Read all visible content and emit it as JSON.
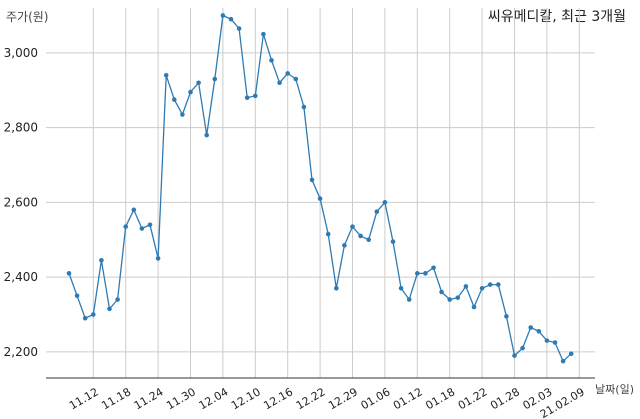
{
  "chart_data": {
    "type": "line",
    "title": "씨유메디칼, 최근 3개월",
    "xlabel": "날짜(일)",
    "ylabel": "주가(원)",
    "ylim": [
      2130,
      3120
    ],
    "yticks": [
      2200,
      2400,
      2600,
      2800,
      3000
    ],
    "ytick_labels": [
      "2,200",
      "2,400",
      "2,600",
      "2,800",
      "3,000"
    ],
    "xtick_labels": [
      "11.12",
      "11.18",
      "11.24",
      "11.30",
      "12.04",
      "12.10",
      "12.16",
      "12.22",
      "12.29",
      "01.06",
      "01.12",
      "01.18",
      "01.22",
      "01.28",
      "02.03",
      "21.02.09"
    ],
    "xtick_index": [
      3,
      7,
      11,
      15,
      19,
      23,
      27,
      31,
      35,
      39,
      43,
      47,
      51,
      55,
      59,
      63
    ],
    "grid": true,
    "line_color": "#2e7bb4",
    "values": [
      2410,
      2350,
      2290,
      2300,
      2445,
      2315,
      2340,
      2535,
      2580,
      2530,
      2540,
      2450,
      2940,
      2875,
      2835,
      2895,
      2920,
      2780,
      2930,
      3100,
      3090,
      3065,
      2880,
      2885,
      3050,
      2980,
      2920,
      2945,
      2930,
      2855,
      2660,
      2610,
      2515,
      2370,
      2485,
      2535,
      2510,
      2500,
      2575,
      2600,
      2495,
      2370,
      2340,
      2410,
      2410,
      2425,
      2360,
      2340,
      2345,
      2375,
      2320,
      2370,
      2380,
      2380,
      2295,
      2190,
      2210,
      2265,
      2255,
      2230,
      2225,
      2175,
      2195
    ]
  }
}
